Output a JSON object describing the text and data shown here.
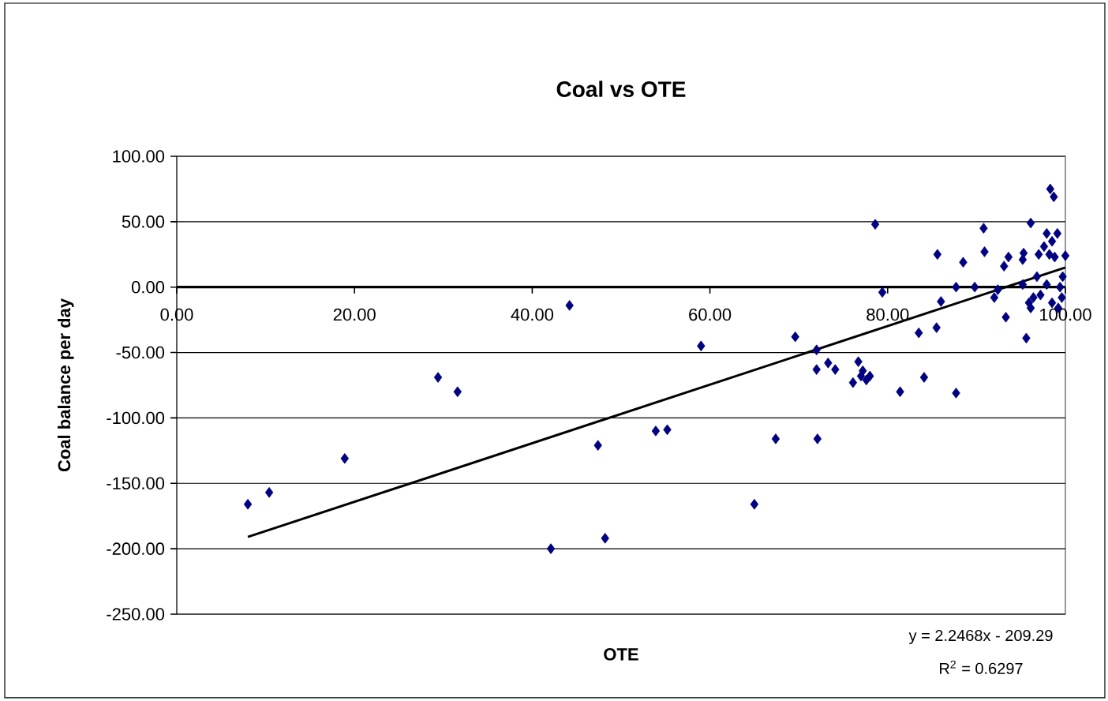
{
  "chart_data": {
    "type": "scatter",
    "title": "Coal vs OTE",
    "xlabel": "OTE",
    "ylabel": "Coal balance per day",
    "xlim": [
      0,
      100
    ],
    "ylim": [
      -250,
      100
    ],
    "xticks": [
      {
        "value": 0,
        "label": "0.00"
      },
      {
        "value": 20,
        "label": "20.00"
      },
      {
        "value": 40,
        "label": "40.00"
      },
      {
        "value": 60,
        "label": "60.00"
      },
      {
        "value": 80,
        "label": "80.00"
      },
      {
        "value": 100,
        "label": "100.00"
      }
    ],
    "yticks": [
      {
        "value": -250,
        "label": "-250.00"
      },
      {
        "value": -200,
        "label": "-200.00"
      },
      {
        "value": -150,
        "label": "-150.00"
      },
      {
        "value": -100,
        "label": "-100.00"
      },
      {
        "value": -50,
        "label": "-50.00"
      },
      {
        "value": 0,
        "label": "0.00"
      },
      {
        "value": 50,
        "label": "50.00"
      },
      {
        "value": 100,
        "label": "100.00"
      }
    ],
    "grid": "y",
    "series": [
      {
        "color": "#000080",
        "marker": "diamond",
        "x": [
          8.0,
          10.4,
          18.9,
          29.4,
          31.6,
          44.2,
          42.1,
          47.4,
          48.2,
          53.9,
          55.2,
          59.0,
          65.0,
          67.4,
          69.6,
          72.1,
          72.0,
          72.0,
          73.3,
          74.1,
          76.1,
          76.7,
          77.0,
          77.6,
          77.2,
          78.0,
          78.6,
          79.4,
          81.4,
          83.5,
          84.1,
          85.5,
          85.6,
          86.0,
          87.7,
          87.7,
          88.5,
          89.8,
          90.8,
          90.9,
          92.0,
          92.4,
          93.3,
          93.1,
          93.6,
          95.2,
          95.3,
          95.6,
          95.2,
          96.1,
          95.9,
          96.4,
          96.1,
          96.8,
          97.0,
          97.2,
          97.6,
          97.9,
          98.3,
          98.7,
          98.2,
          98.5,
          99.1,
          98.8,
          99.2,
          99.4,
          99.7,
          100.0,
          99.6,
          97.9,
          98.5
        ],
        "values": [
          -166,
          -157,
          -131,
          -69,
          -80,
          -14,
          -200,
          -121,
          -192,
          -110,
          -109,
          -45,
          -166,
          -116,
          -38,
          -116,
          -48,
          -63,
          -58,
          -63,
          -73,
          -57,
          -68,
          -71,
          -64,
          -68,
          48,
          -4,
          -80,
          -35,
          -69,
          -31,
          25,
          -11,
          -81,
          0,
          19,
          0,
          45,
          27,
          -8,
          -2,
          -23,
          16,
          23,
          21,
          26,
          -39,
          2,
          49,
          -12,
          -8,
          -16,
          8,
          25,
          -6,
          31,
          41,
          75,
          69,
          25,
          35,
          41,
          23,
          -16,
          0,
          8,
          24,
          -8,
          2,
          -12
        ]
      },
      {
        "type": "line",
        "color": "#000000",
        "marker": "none",
        "x": [
          8.0,
          100.0
        ],
        "values": [
          -191,
          15
        ]
      }
    ],
    "annotations": [
      "y = 2.2468x - 209.29",
      "R$^{2}$ = 0.6297"
    ]
  }
}
